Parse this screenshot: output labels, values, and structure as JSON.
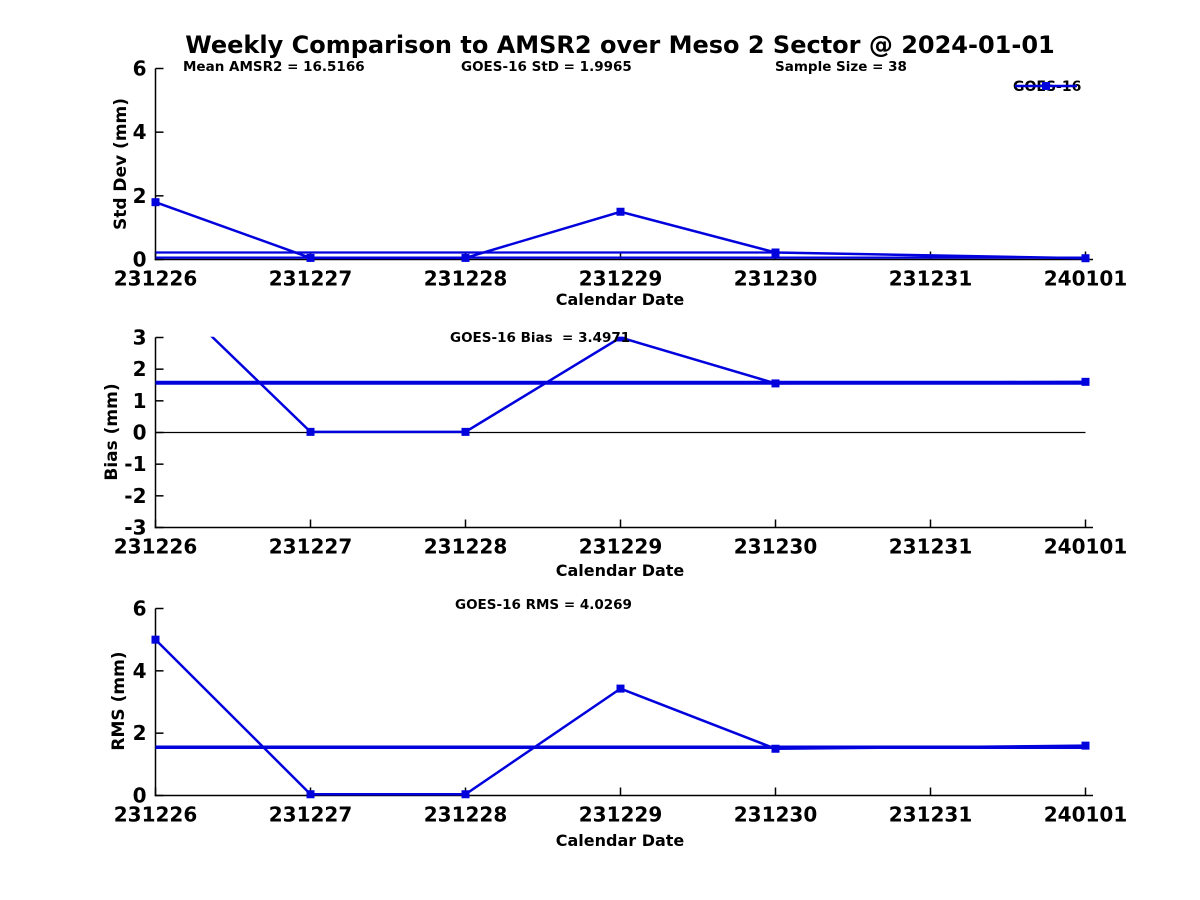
{
  "title": "Weekly Comparison to AMSR2 over Meso 2 Sector @ 2024-01-01",
  "legend": {
    "label": "GOES-16",
    "color": "#0202dd",
    "marker": "square"
  },
  "colors": {
    "series_blue": "#0202dd",
    "axis_black": "#000000"
  },
  "chart_data": [
    {
      "id": "stddev",
      "type": "line",
      "ylabel": "Std Dev (mm)",
      "xlabel": "Calendar Date",
      "categories": [
        "231226",
        "231227",
        "231228",
        "231229",
        "231230",
        "231231",
        "240101"
      ],
      "ylim": [
        0,
        6
      ],
      "yticks": [
        0,
        2,
        4,
        6
      ],
      "grid": false,
      "legend_position": "top-right-outside",
      "annotations": [
        "Mean AMSR2 = 16.5166",
        "GOES-16 StD = 1.9965",
        "Sample Size = 38"
      ],
      "series": [
        {
          "name": "GOES-16",
          "marker": "square",
          "width": 2.5,
          "x_idx": [
            0,
            1,
            2,
            3,
            4,
            6
          ],
          "values": [
            1.8,
            0.05,
            0.05,
            1.5,
            0.22,
            0.04
          ]
        },
        {
          "name": "reference-line-upper",
          "marker": "none",
          "width": 2.2,
          "x_idx": [
            0,
            4
          ],
          "values": [
            0.22,
            0.22
          ]
        },
        {
          "name": "reference-line-lower",
          "marker": "none",
          "width": 2.2,
          "x_idx": [
            0,
            6
          ],
          "values": [
            0.06,
            0.06
          ]
        }
      ]
    },
    {
      "id": "bias",
      "type": "line",
      "ylabel": "Bias (mm)",
      "xlabel": "Calendar Date",
      "categories": [
        "231226",
        "231227",
        "231228",
        "231229",
        "231230",
        "231231",
        "240101"
      ],
      "ylim": [
        -3,
        3
      ],
      "yticks": [
        -3,
        -2,
        -1,
        0,
        1,
        2,
        3
      ],
      "grid": false,
      "annotations": [
        "GOES-16 Bias  = 3.4971"
      ],
      "series": [
        {
          "name": "GOES-16",
          "marker": "square",
          "width": 2.5,
          "clip": true,
          "x_idx": [
            0,
            1,
            2,
            3,
            4,
            6
          ],
          "values": [
            4.75,
            0.02,
            0.02,
            3.0,
            1.55,
            1.6
          ]
        },
        {
          "name": "weekly-bias-line",
          "marker": "none",
          "width": 4,
          "x_idx": [
            0,
            6
          ],
          "values": [
            1.57,
            1.57
          ]
        },
        {
          "name": "zero-line",
          "marker": "none",
          "width": 1.3,
          "color": "#000000",
          "x_idx": [
            0,
            6
          ],
          "values": [
            0,
            0
          ]
        }
      ]
    },
    {
      "id": "rms",
      "type": "line",
      "ylabel": "RMS (mm)",
      "xlabel": "Calendar Date",
      "categories": [
        "231226",
        "231227",
        "231228",
        "231229",
        "231230",
        "231231",
        "240101"
      ],
      "ylim": [
        0,
        6
      ],
      "yticks": [
        0,
        2,
        4,
        6
      ],
      "grid": false,
      "annotations": [
        "GOES-16 RMS = 4.0269"
      ],
      "series": [
        {
          "name": "GOES-16",
          "marker": "square",
          "width": 2.5,
          "x_idx": [
            0,
            1,
            2,
            3,
            4,
            6
          ],
          "values": [
            5.0,
            0.04,
            0.04,
            3.43,
            1.5,
            1.6
          ]
        },
        {
          "name": "weekly-rms-line",
          "marker": "none",
          "width": 3.5,
          "x_idx": [
            0,
            6
          ],
          "values": [
            1.55,
            1.55
          ]
        }
      ]
    }
  ]
}
